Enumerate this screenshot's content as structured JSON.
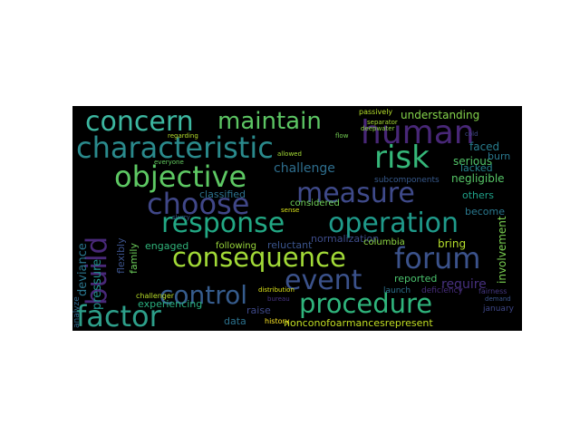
{
  "wordcloud": {
    "background": "#000000",
    "words": [
      {
        "text": "concern",
        "color": "#3cb7a0"
      },
      {
        "text": "maintain",
        "color": "#5cc563"
      },
      {
        "text": "human",
        "color": "#482777"
      },
      {
        "text": "characteristic",
        "color": "#2a8a8c"
      },
      {
        "text": "risk",
        "color": "#35b779"
      },
      {
        "text": "objective",
        "color": "#5dc863"
      },
      {
        "text": "measure",
        "color": "#3f4a8a"
      },
      {
        "text": "choose",
        "color": "#404788"
      },
      {
        "text": "response",
        "color": "#22a884"
      },
      {
        "text": "operation",
        "color": "#1f9a8a"
      },
      {
        "text": "consequence",
        "color": "#a2da37"
      },
      {
        "text": "forum",
        "color": "#3b528b"
      },
      {
        "text": "event",
        "color": "#3b528b"
      },
      {
        "text": "control",
        "color": "#365c8d"
      },
      {
        "text": "procedure",
        "color": "#2fb47c"
      },
      {
        "text": "factor",
        "color": "#2d9f8a"
      },
      {
        "text": "build",
        "color": "#482878"
      },
      {
        "text": "challenge",
        "color": "#2e6e8e"
      },
      {
        "text": "understanding",
        "color": "#84d44b"
      },
      {
        "text": "normalization",
        "color": "#3e4c8a"
      },
      {
        "text": "classified",
        "color": "#2c728e"
      },
      {
        "text": "involvement",
        "color": "#7ad151"
      },
      {
        "text": "require",
        "color": "#46307e"
      },
      {
        "text": "reluctant",
        "color": "#3a548c"
      },
      {
        "text": "nonconofoarmancesrepresent",
        "color": "#c2df23"
      },
      {
        "text": "experiencing",
        "color": "#29af7f"
      },
      {
        "text": "engaged",
        "color": "#31b57b"
      },
      {
        "text": "deviance",
        "color": "#2a768e"
      },
      {
        "text": "pressure",
        "color": "#21918c"
      },
      {
        "text": "flexibly",
        "color": "#3b528b"
      },
      {
        "text": "family",
        "color": "#6ccd5a"
      },
      {
        "text": "data",
        "color": "#2c728e"
      },
      {
        "text": "raise",
        "color": "#3e4989"
      },
      {
        "text": "bring",
        "color": "#b5de2b"
      },
      {
        "text": "columbia",
        "color": "#8fd744"
      },
      {
        "text": "following",
        "color": "#9bd93c"
      },
      {
        "text": "reported",
        "color": "#4ac16d"
      },
      {
        "text": "launch",
        "color": "#2d708e"
      },
      {
        "text": "deficiency",
        "color": "#472d7b"
      },
      {
        "text": "serious",
        "color": "#52c569"
      },
      {
        "text": "become",
        "color": "#2a788e"
      },
      {
        "text": "negligible",
        "color": "#56c667"
      },
      {
        "text": "others",
        "color": "#1fa088"
      },
      {
        "text": "faced",
        "color": "#287d8e"
      },
      {
        "text": "burn",
        "color": "#2a788e"
      },
      {
        "text": "lacked",
        "color": "#25838e"
      },
      {
        "text": "considered",
        "color": "#6ece58"
      },
      {
        "text": "subcomponents",
        "color": "#37598c"
      },
      {
        "text": "history",
        "color": "#fde725"
      },
      {
        "text": "challenger",
        "color": "#b8de29"
      },
      {
        "text": "january",
        "color": "#3f4788"
      },
      {
        "text": "passively",
        "color": "#b5de2b"
      },
      {
        "text": "separator",
        "color": "#a8db34"
      },
      {
        "text": "deepwater",
        "color": "#8fd744"
      },
      {
        "text": "flow",
        "color": "#75d054"
      },
      {
        "text": "sense",
        "color": "#d8e219"
      },
      {
        "text": "everyone",
        "color": "#63cb5f"
      },
      {
        "text": "regarding",
        "color": "#b5de2b"
      },
      {
        "text": "slurry",
        "color": "#35608d"
      },
      {
        "text": "demand",
        "color": "#3a548c"
      },
      {
        "text": "fairness",
        "color": "#453781"
      },
      {
        "text": "distribution",
        "color": "#dde318"
      },
      {
        "text": "bureau",
        "color": "#46337f"
      },
      {
        "text": "analyze",
        "color": "#31688e"
      },
      {
        "text": "allowed",
        "color": "#a5db36"
      },
      {
        "text": "cold",
        "color": "#3f4889"
      }
    ]
  }
}
